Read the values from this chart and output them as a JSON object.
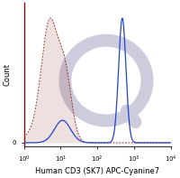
{
  "xlabel": "Human CD3 (SK7) APC-Cyanine7",
  "ylabel": "Count",
  "background_color": "#ffffff",
  "watermark_color": "#ccccdd",
  "isotype_color": "#993333",
  "antibody_color": "#2244cc",
  "font_size_label": 6.0,
  "font_size_tick": 5.0,
  "xlim_log_min": 0.0,
  "xlim_log_max": 4.0,
  "iso_peak1_log": 0.7,
  "iso_sigma1": 0.22,
  "iso_peak2_log": 1.12,
  "iso_sigma2": 0.18,
  "iso_peak2_weight": 0.55,
  "ab_peak_log": 2.68,
  "ab_sigma": 0.1,
  "ab_low_peak_log": 1.05,
  "ab_low_sigma": 0.22,
  "ab_low_weight": 0.18
}
